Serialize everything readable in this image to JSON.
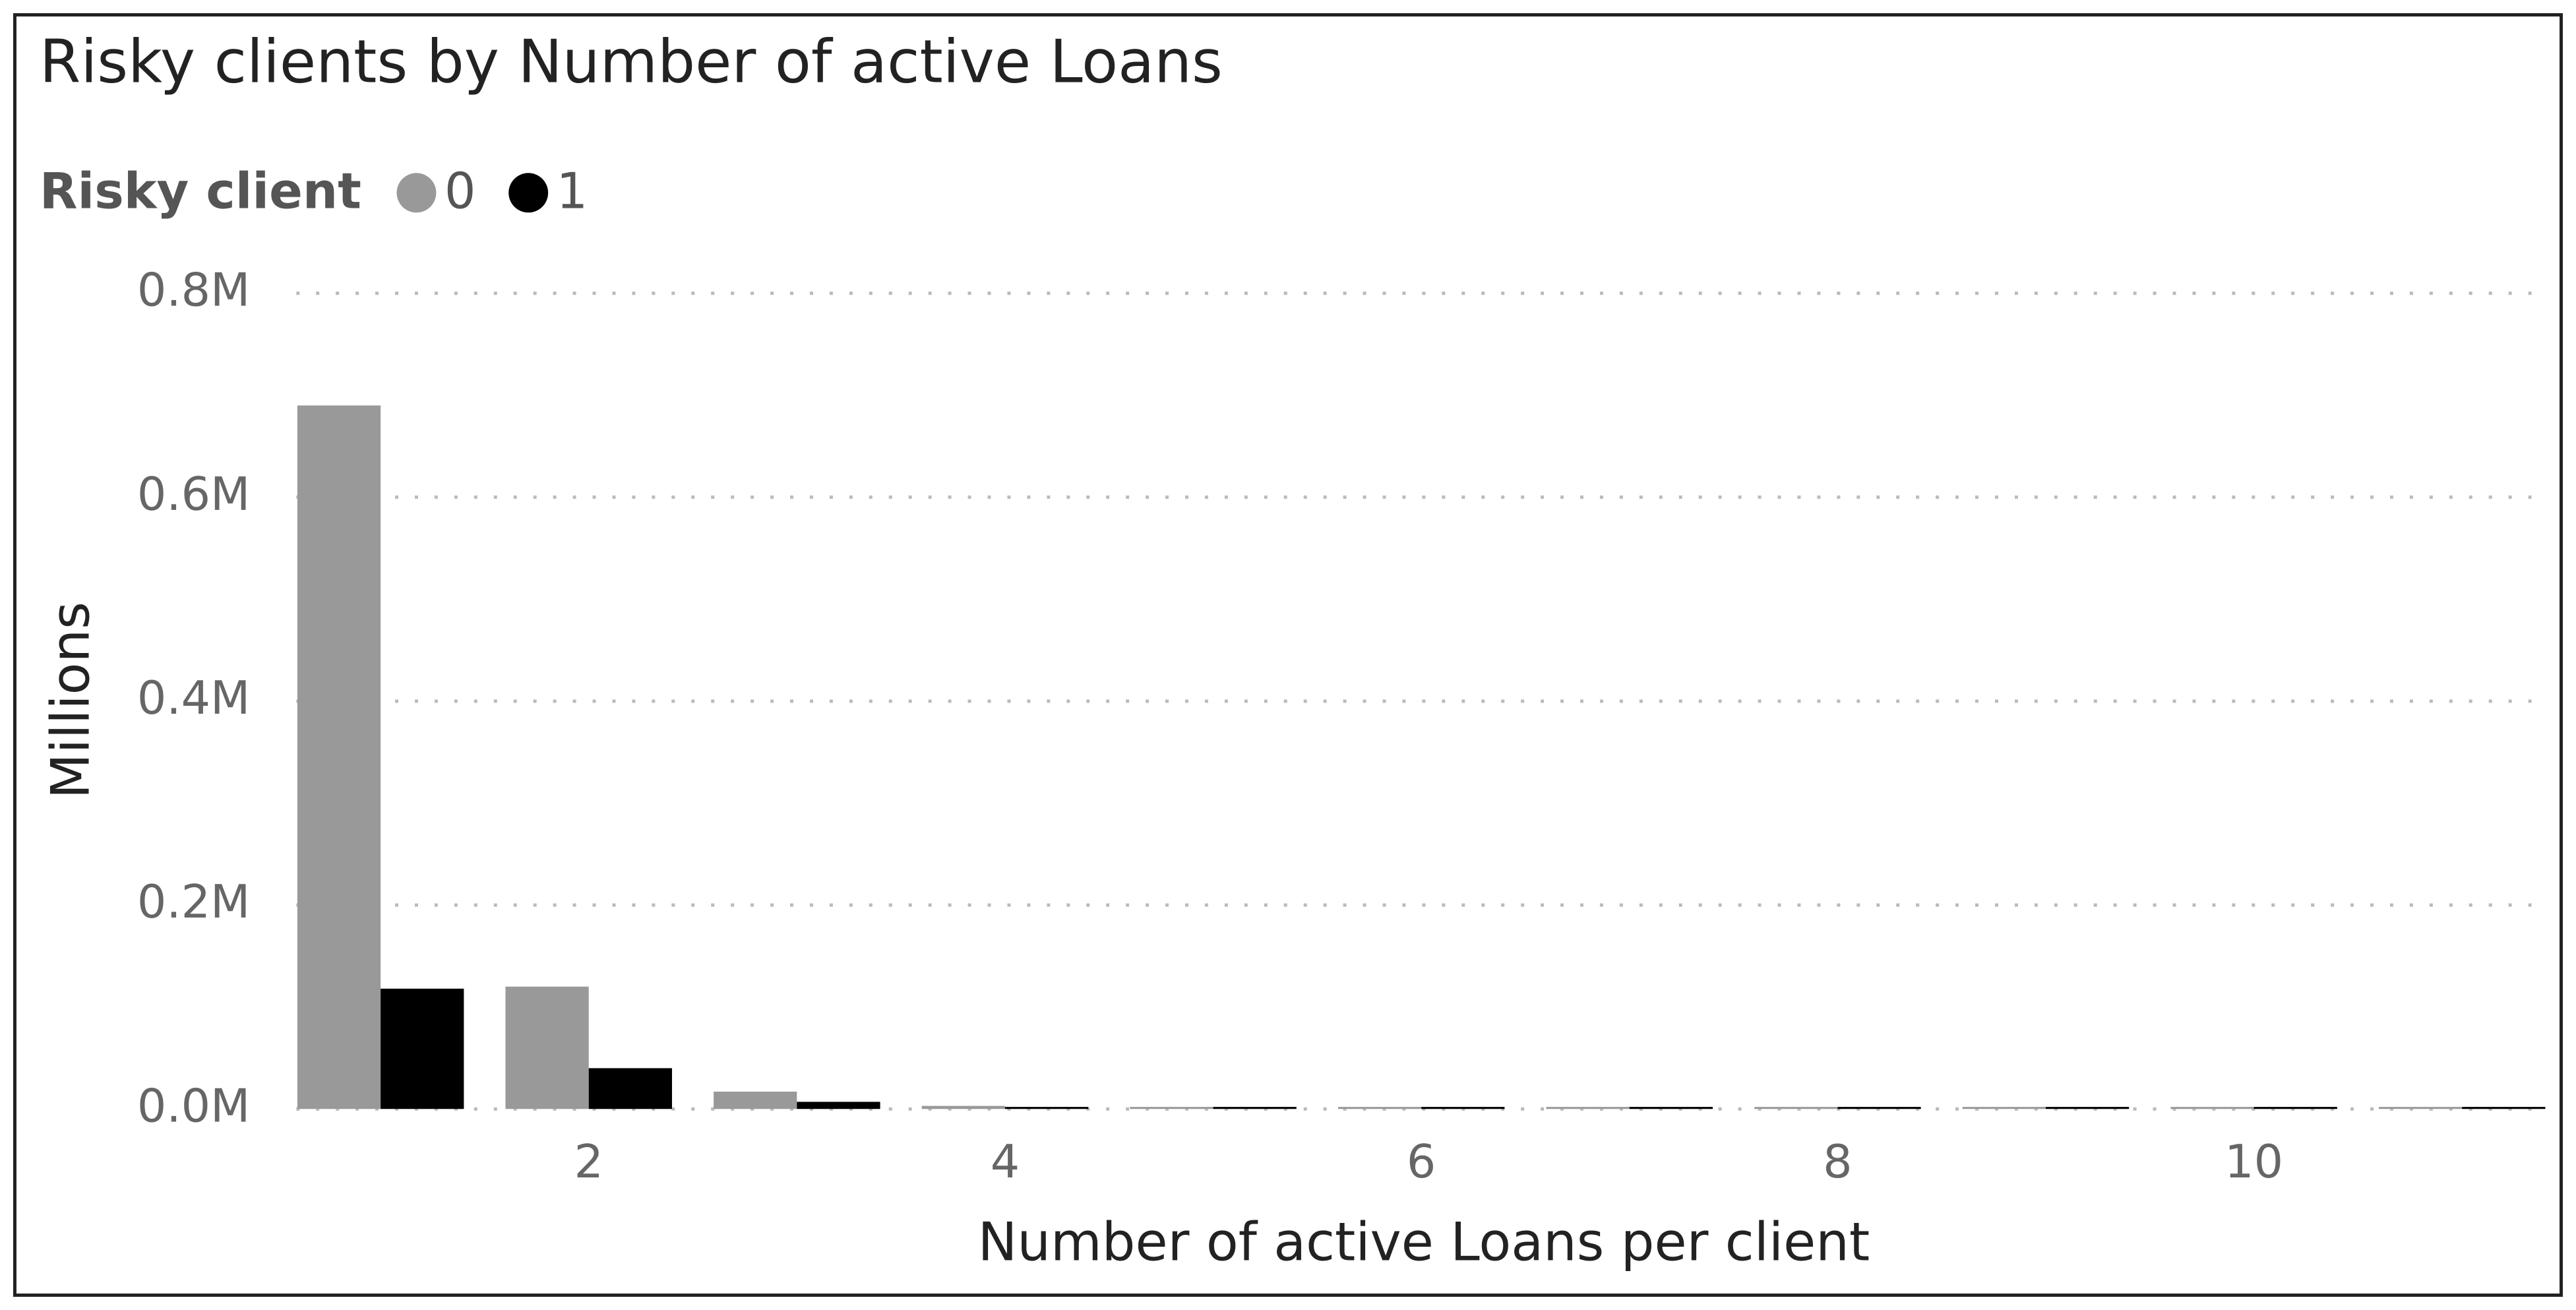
{
  "chart_data": {
    "type": "bar",
    "title": "Risky clients by Number of active Loans",
    "legend_title": "Risky client",
    "x_label": "Number of active Loans per client",
    "y_label": "Millions",
    "x": [
      1,
      2,
      3,
      4,
      5,
      6,
      7,
      8,
      9,
      10,
      11
    ],
    "series": [
      {
        "name": "0",
        "color": "#999999",
        "values": [
          0.69,
          0.12,
          0.017,
          0.003,
          0.002,
          0.002,
          0.002,
          0.002,
          0.002,
          0.002,
          0.002
        ]
      },
      {
        "name": "1",
        "color": "#000000",
        "values": [
          0.118,
          0.04,
          0.007,
          0.002,
          0.002,
          0.002,
          0.002,
          0.002,
          0.002,
          0.002,
          0.002
        ]
      }
    ],
    "xlim": [
      0.5,
      11.5
    ],
    "xticks": [
      2,
      4,
      6,
      8,
      10
    ],
    "ylim": [
      0,
      0.8
    ],
    "yticks": [
      {
        "value": 0,
        "label": "0.0M"
      },
      {
        "value": 0.2,
        "label": "0.2M"
      },
      {
        "value": 0.4,
        "label": "0.4M"
      },
      {
        "value": 0.6,
        "label": "0.6M"
      },
      {
        "value": 0.8,
        "label": "0.8M"
      }
    ],
    "grid": true
  }
}
